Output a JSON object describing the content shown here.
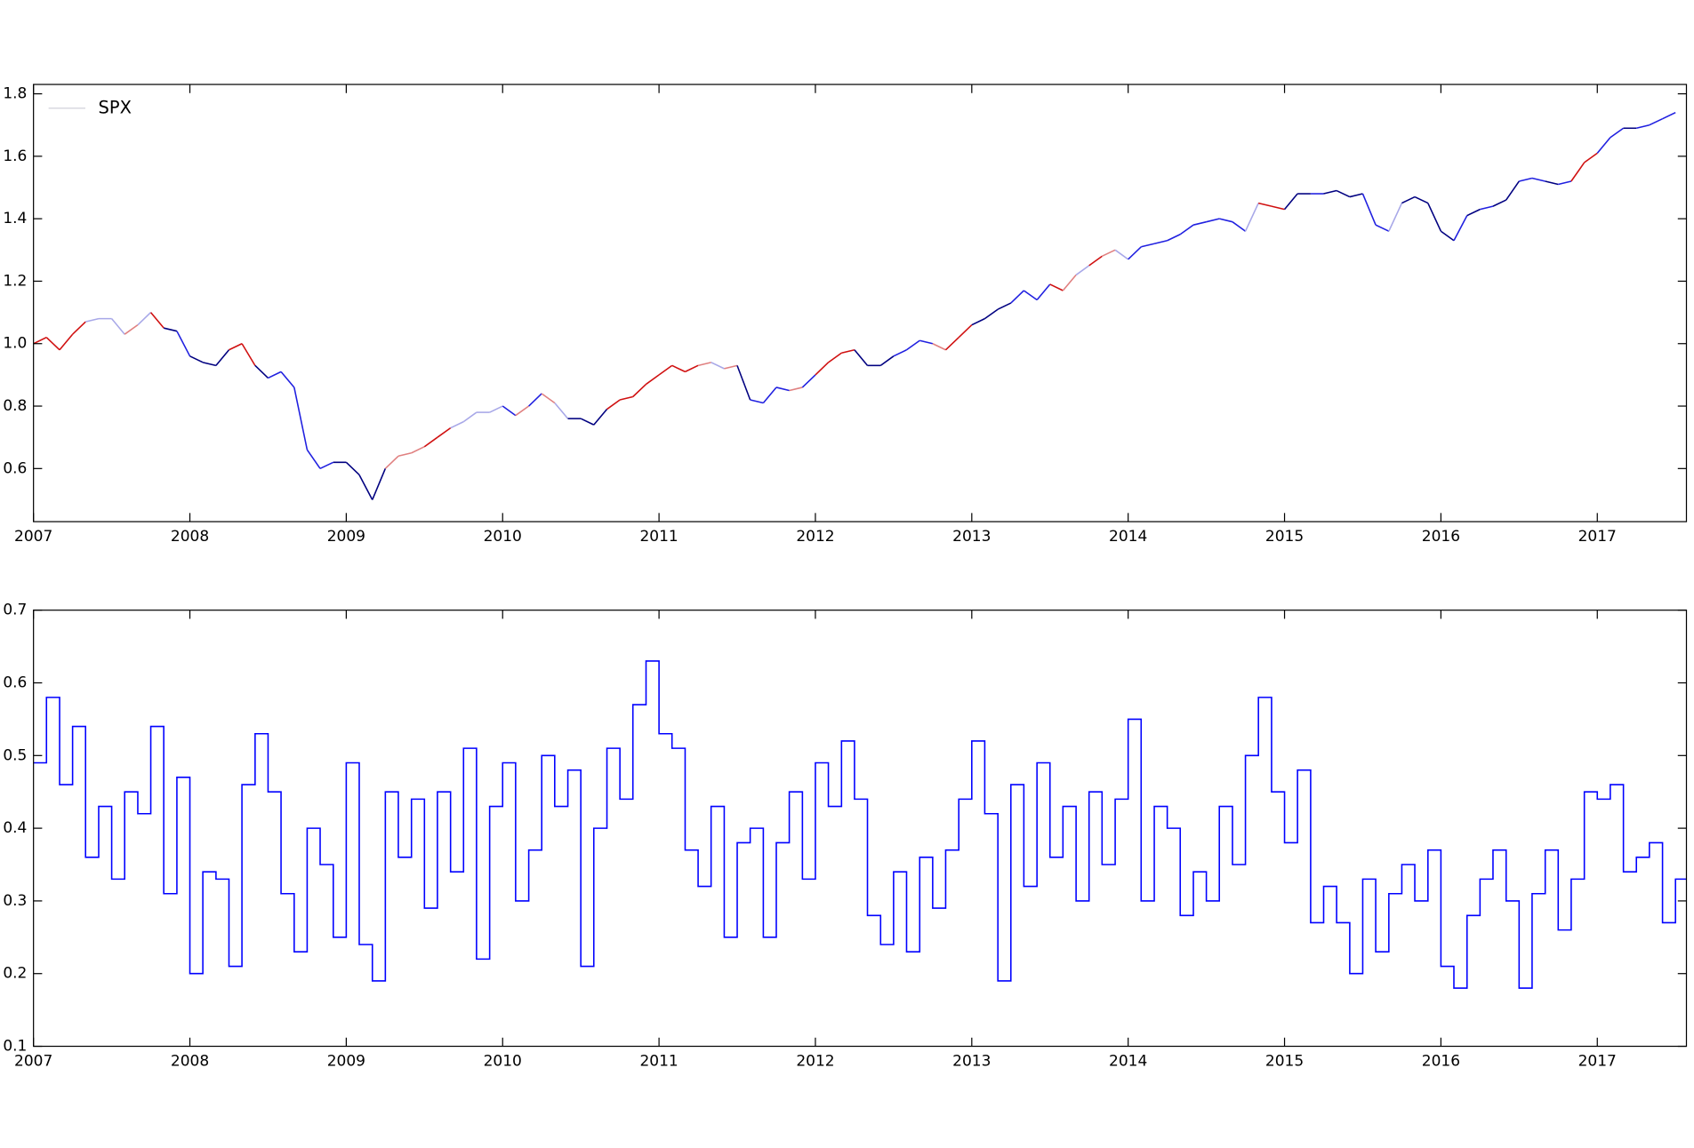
{
  "chart_data": [
    {
      "type": "line",
      "x": [
        2007.0,
        2007.083,
        2007.167,
        2007.25,
        2007.333,
        2007.417,
        2007.5,
        2007.583,
        2007.667,
        2007.75,
        2007.833,
        2007.917,
        2008.0,
        2008.083,
        2008.167,
        2008.25,
        2008.333,
        2008.417,
        2008.5,
        2008.583,
        2008.667,
        2008.75,
        2008.833,
        2008.917,
        2009.0,
        2009.083,
        2009.167,
        2009.25,
        2009.333,
        2009.417,
        2009.5,
        2009.583,
        2009.667,
        2009.75,
        2009.833,
        2009.917,
        2010.0,
        2010.083,
        2010.167,
        2010.25,
        2010.333,
        2010.417,
        2010.5,
        2010.583,
        2010.667,
        2010.75,
        2010.833,
        2010.917,
        2011.0,
        2011.083,
        2011.167,
        2011.25,
        2011.333,
        2011.417,
        2011.5,
        2011.583,
        2011.667,
        2011.75,
        2011.833,
        2011.917,
        2012.0,
        2012.083,
        2012.167,
        2012.25,
        2012.333,
        2012.417,
        2012.5,
        2012.583,
        2012.667,
        2012.75,
        2012.833,
        2012.917,
        2013.0,
        2013.083,
        2013.167,
        2013.25,
        2013.333,
        2013.417,
        2013.5,
        2013.583,
        2013.667,
        2013.75,
        2013.833,
        2013.917,
        2014.0,
        2014.083,
        2014.167,
        2014.25,
        2014.333,
        2014.417,
        2014.5,
        2014.583,
        2014.667,
        2014.75,
        2014.833,
        2014.917,
        2015.0,
        2015.083,
        2015.167,
        2015.25,
        2015.333,
        2015.417,
        2015.5,
        2015.583,
        2015.667,
        2015.75,
        2015.833,
        2015.917,
        2016.0,
        2016.083,
        2016.167,
        2016.25,
        2016.333,
        2016.417,
        2016.5,
        2016.583,
        2016.667,
        2016.75,
        2016.833,
        2016.917,
        2017.0,
        2017.083,
        2017.167,
        2017.25,
        2017.333,
        2017.417,
        2017.5
      ],
      "series": [
        {
          "name": "SPX",
          "color": "#d8d8e0",
          "values": [
            1.0,
            1.02,
            0.98,
            1.03,
            1.07,
            1.08,
            1.08,
            1.03,
            1.06,
            1.1,
            1.05,
            1.04,
            0.96,
            0.94,
            0.93,
            0.98,
            1.0,
            0.93,
            0.89,
            0.91,
            0.86,
            0.66,
            0.6,
            0.62,
            0.62,
            0.58,
            0.5,
            0.6,
            0.64,
            0.65,
            0.67,
            0.7,
            0.73,
            0.75,
            0.78,
            0.78,
            0.8,
            0.77,
            0.8,
            0.84,
            0.81,
            0.76,
            0.76,
            0.74,
            0.79,
            0.82,
            0.83,
            0.87,
            0.9,
            0.93,
            0.91,
            0.93,
            0.94,
            0.92,
            0.93,
            0.82,
            0.81,
            0.86,
            0.85,
            0.86,
            0.9,
            0.94,
            0.97,
            0.98,
            0.93,
            0.93,
            0.96,
            0.98,
            1.01,
            1.0,
            0.98,
            1.02,
            1.06,
            1.08,
            1.11,
            1.13,
            1.17,
            1.14,
            1.19,
            1.17,
            1.22,
            1.25,
            1.28,
            1.3,
            1.27,
            1.31,
            1.32,
            1.33,
            1.35,
            1.38,
            1.39,
            1.4,
            1.39,
            1.36,
            1.45,
            1.44,
            1.43,
            1.48,
            1.48,
            1.48,
            1.49,
            1.47,
            1.48,
            1.38,
            1.36,
            1.45,
            1.47,
            1.45,
            1.36,
            1.33,
            1.41,
            1.43,
            1.44,
            1.46,
            1.52,
            1.53,
            1.52,
            1.51,
            1.52,
            1.58,
            1.61,
            1.66,
            1.69,
            1.69,
            1.7,
            1.72,
            1.74
          ],
          "colors": [
            "#d01010",
            "#d01010",
            "#d01010",
            "#d01010",
            "#a8a8e8",
            "#a8a8e8",
            "#a8a8e8",
            "#e08080",
            "#a8a8e8",
            "#d01010",
            "#000080",
            "#2020e0",
            "#000080",
            "#000080",
            "#000080",
            "#d01010",
            "#d01010",
            "#000080",
            "#2020e0",
            "#2020e0",
            "#2020e0",
            "#2020e0",
            "#2020e0",
            "#000080",
            "#000080",
            "#000080",
            "#000080",
            "#e08080",
            "#e08080",
            "#e08080",
            "#d01010",
            "#d01010",
            "#a8a8e8",
            "#a8a8e8",
            "#a8a8e8",
            "#a8a8e8",
            "#2020e0",
            "#e08080",
            "#2020e0",
            "#e08080",
            "#a8a8e8",
            "#000080",
            "#000080",
            "#000080",
            "#d01010",
            "#d01010",
            "#d01010",
            "#d01010",
            "#d01010",
            "#d01010",
            "#d01010",
            "#e08080",
            "#a8a8e8",
            "#e08080",
            "#000080",
            "#2020e0",
            "#2020e0",
            "#2020e0",
            "#e08080",
            "#2020e0",
            "#d01010",
            "#d01010",
            "#d01010",
            "#000080",
            "#000080",
            "#000080",
            "#2020e0",
            "#2020e0",
            "#2020e0",
            "#e08080",
            "#d01010",
            "#d01010",
            "#000080",
            "#000080",
            "#000080",
            "#2020e0",
            "#2020e0",
            "#2020e0",
            "#d01010",
            "#e08080",
            "#a8a8e8",
            "#d01010",
            "#e08080",
            "#a8a8e8",
            "#2020e0",
            "#2020e0",
            "#2020e0",
            "#2020e0",
            "#2020e0",
            "#2020e0",
            "#2020e0",
            "#2020e0",
            "#2020e0",
            "#a8a8e8",
            "#d01010",
            "#d01010",
            "#000080",
            "#000080",
            "#2020e0",
            "#000080",
            "#000080",
            "#000080",
            "#2020e0",
            "#2020e0",
            "#a8a8e8",
            "#000080",
            "#000080",
            "#000080",
            "#000080",
            "#2020e0",
            "#000080",
            "#2020e0",
            "#000080",
            "#000080",
            "#2020e0",
            "#2020e0",
            "#000080",
            "#2020e0",
            "#d01010",
            "#d01010",
            "#2020e0",
            "#2020e0",
            "#000080",
            "#2020e0",
            "#2020e0",
            "#2020e0",
            "#2020e0"
          ]
        }
      ],
      "xlim": [
        2007,
        2017.57
      ],
      "xticks": [
        2007,
        2008,
        2009,
        2010,
        2011,
        2012,
        2013,
        2014,
        2015,
        2016,
        2017
      ],
      "ylim": [
        0.43,
        1.83
      ],
      "yticks": [
        0.6,
        0.8,
        {
          "value": 1,
          "label": "1.0"
        },
        1.2,
        1.4,
        1.6,
        1.8
      ],
      "legend": "upper left"
    },
    {
      "type": "step",
      "x": [
        2007.0,
        2007.083,
        2007.167,
        2007.25,
        2007.333,
        2007.417,
        2007.5,
        2007.583,
        2007.667,
        2007.75,
        2007.833,
        2007.917,
        2008.0,
        2008.083,
        2008.167,
        2008.25,
        2008.333,
        2008.417,
        2008.5,
        2008.583,
        2008.667,
        2008.75,
        2008.833,
        2008.917,
        2009.0,
        2009.083,
        2009.167,
        2009.25,
        2009.333,
        2009.417,
        2009.5,
        2009.583,
        2009.667,
        2009.75,
        2009.833,
        2009.917,
        2010.0,
        2010.083,
        2010.167,
        2010.25,
        2010.333,
        2010.417,
        2010.5,
        2010.583,
        2010.667,
        2010.75,
        2010.833,
        2010.917,
        2011.0,
        2011.083,
        2011.167,
        2011.25,
        2011.333,
        2011.417,
        2011.5,
        2011.583,
        2011.667,
        2011.75,
        2011.833,
        2011.917,
        2012.0,
        2012.083,
        2012.167,
        2012.25,
        2012.333,
        2012.417,
        2012.5,
        2012.583,
        2012.667,
        2012.75,
        2012.833,
        2012.917,
        2013.0,
        2013.083,
        2013.167,
        2013.25,
        2013.333,
        2013.417,
        2013.5,
        2013.583,
        2013.667,
        2013.75,
        2013.833,
        2013.917,
        2014.0,
        2014.083,
        2014.167,
        2014.25,
        2014.333,
        2014.417,
        2014.5,
        2014.583,
        2014.667,
        2014.75,
        2014.833,
        2014.917,
        2015.0,
        2015.083,
        2015.167,
        2015.25,
        2015.333,
        2015.417,
        2015.5,
        2015.583,
        2015.667,
        2015.75,
        2015.833,
        2015.917,
        2016.0,
        2016.083,
        2016.167,
        2016.25,
        2016.333,
        2016.417,
        2016.5,
        2016.583,
        2016.667,
        2016.75,
        2016.833,
        2016.917,
        2017.0,
        2017.083,
        2017.167,
        2017.25,
        2017.333,
        2017.417,
        2017.5
      ],
      "values": [
        0.49,
        0.58,
        0.46,
        0.54,
        0.36,
        0.43,
        0.33,
        0.45,
        0.42,
        0.54,
        0.31,
        0.47,
        0.2,
        0.34,
        0.33,
        0.21,
        0.46,
        0.53,
        0.45,
        0.31,
        0.23,
        0.4,
        0.35,
        0.25,
        0.49,
        0.24,
        0.19,
        0.45,
        0.36,
        0.44,
        0.29,
        0.45,
        0.34,
        0.51,
        0.22,
        0.43,
        0.49,
        0.3,
        0.37,
        0.5,
        0.43,
        0.48,
        0.21,
        0.4,
        0.51,
        0.44,
        0.57,
        0.63,
        0.53,
        0.51,
        0.37,
        0.32,
        0.43,
        0.25,
        0.38,
        0.4,
        0.25,
        0.38,
        0.45,
        0.33,
        0.49,
        0.43,
        0.52,
        0.44,
        0.28,
        0.24,
        0.34,
        0.23,
        0.36,
        0.29,
        0.37,
        0.44,
        0.52,
        0.42,
        0.19,
        0.46,
        0.32,
        0.49,
        0.36,
        0.43,
        0.3,
        0.45,
        0.35,
        0.44,
        0.55,
        0.3,
        0.43,
        0.4,
        0.28,
        0.34,
        0.3,
        0.43,
        0.35,
        0.5,
        0.58,
        0.45,
        0.38,
        0.48,
        0.27,
        0.32,
        0.27,
        0.2,
        0.33,
        0.23,
        0.31,
        0.35,
        0.3,
        0.37,
        0.21,
        0.18,
        0.28,
        0.33,
        0.37,
        0.3,
        0.18,
        0.31,
        0.37,
        0.26,
        0.33,
        0.45,
        0.44,
        0.46,
        0.34,
        0.36,
        0.38,
        0.27,
        0.33
      ],
      "color": "#0000ff",
      "xlim": [
        2007,
        2017.57
      ],
      "xticks": [
        2007,
        2008,
        2009,
        2010,
        2011,
        2012,
        2013,
        2014,
        2015,
        2016,
        2017
      ],
      "ylim": [
        0.1,
        0.7
      ],
      "yticks": [
        0.1,
        0.2,
        0.3,
        0.4,
        0.5,
        0.6,
        0.7
      ]
    }
  ]
}
